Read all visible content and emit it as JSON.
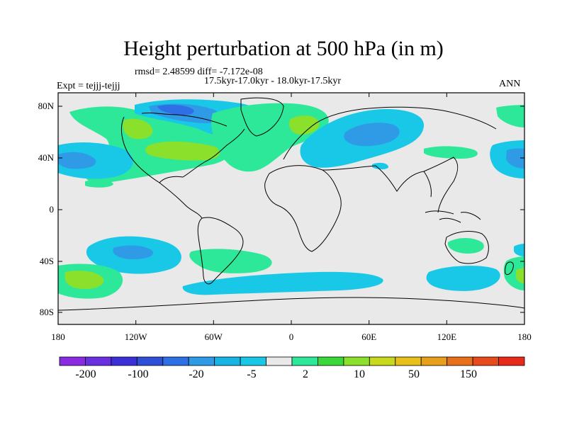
{
  "title": "Height perturbation at 500 hPa (in m)",
  "stats_line": "rmsd= 2.48599 diff= -7.172e-08",
  "period_line": "17.5kyr-17.0kyr - 18.0kyr-17.5kyr",
  "experiment_label": "Expt = tejjj-tejjj",
  "season_label": "ANN",
  "lat_ticks": [
    "80N",
    "40N",
    "0",
    "40S",
    "80S"
  ],
  "lon_ticks": [
    "180",
    "120W",
    "60W",
    "0",
    "60E",
    "120E",
    "180"
  ],
  "colorbar": {
    "colors": [
      "#8a2be2",
      "#6a2fe0",
      "#3a2fd8",
      "#2f4fd8",
      "#2f6fe6",
      "#2f9be6",
      "#18b4e6",
      "#18c8e6",
      "#e9e9e9",
      "#2ee89a",
      "#3ad83a",
      "#8ae02a",
      "#c8d81a",
      "#e8c01a",
      "#e8a01a",
      "#e8701a",
      "#e84a1a",
      "#e82a1a"
    ],
    "labels": [
      "-200",
      "-100",
      "-20",
      "-5",
      "2",
      "10",
      "50",
      "150"
    ]
  },
  "map": {
    "background_color": "#e9e9e9",
    "contour_colors": {
      "light_blue": "#18c8e6",
      "mid_blue": "#2f9be6",
      "green": "#2ee89a",
      "light_green": "#8ae02a"
    }
  }
}
